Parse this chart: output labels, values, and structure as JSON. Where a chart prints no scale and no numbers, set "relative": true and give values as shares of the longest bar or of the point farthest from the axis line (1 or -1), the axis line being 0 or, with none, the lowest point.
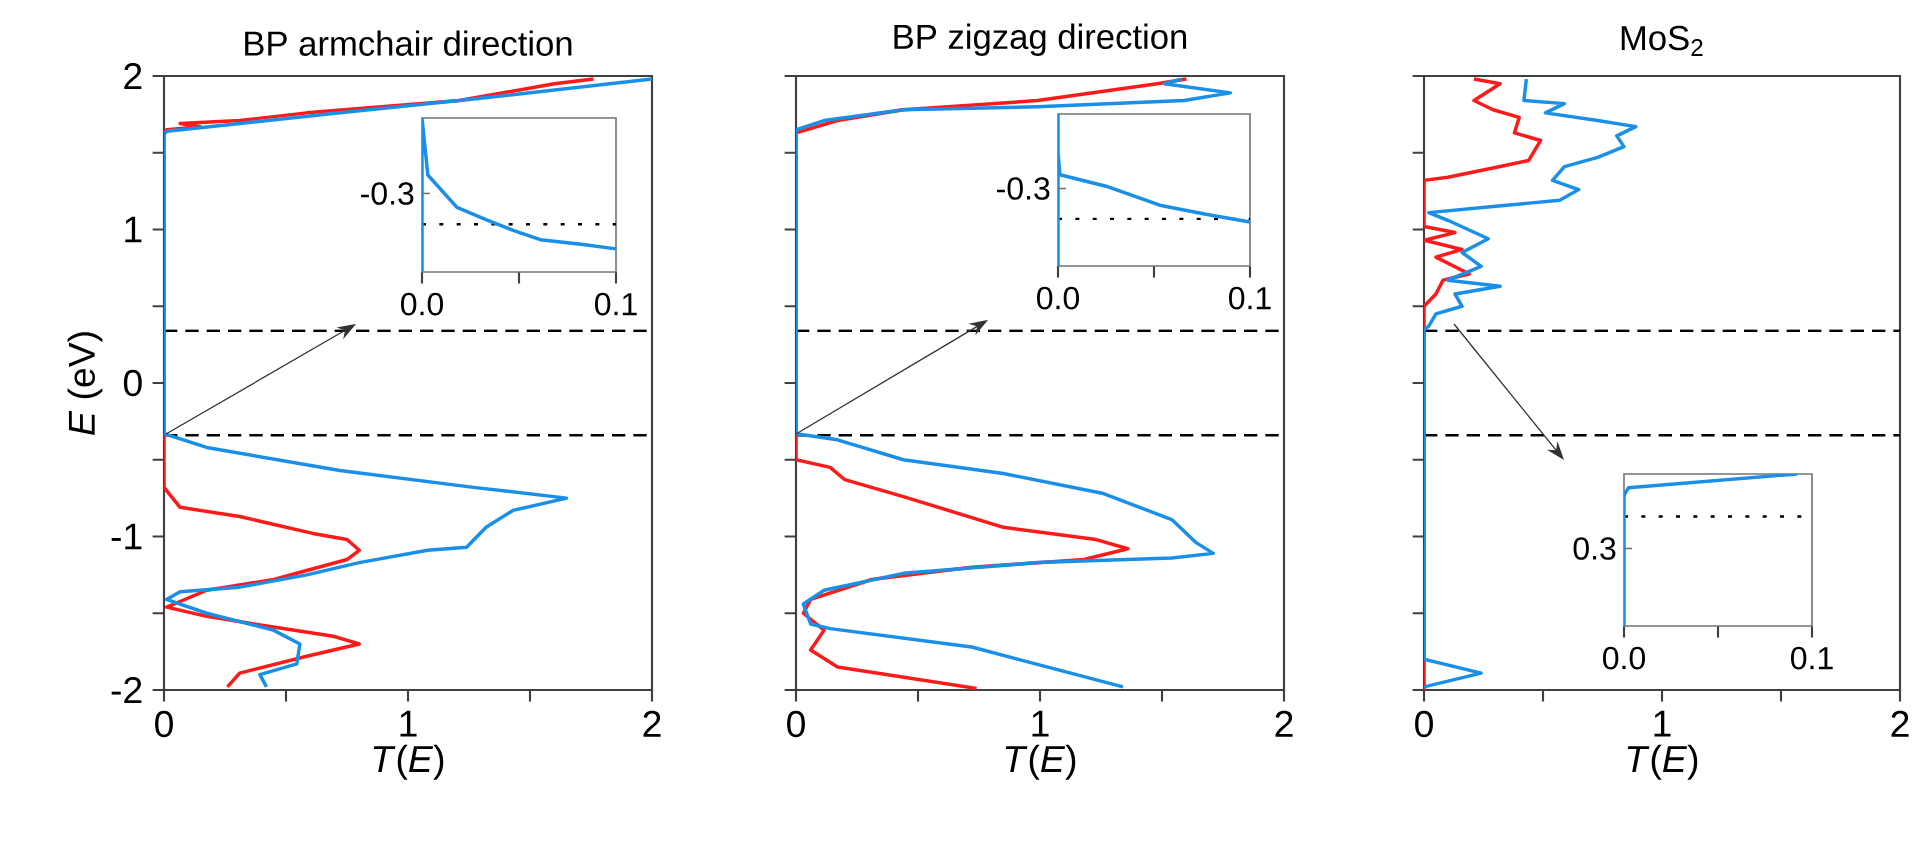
{
  "chart_data": [
    {
      "type": "line",
      "title": "BP armchair direction",
      "xlabel": "*T*(*E*)",
      "ylabel": "*E* (eV)",
      "xlim": [
        0,
        2
      ],
      "ylim": [
        -2,
        2
      ],
      "xticks": [
        0,
        {
          "value": 0.5,
          "label": null
        },
        1,
        {
          "value": 1.5,
          "label": null
        },
        2
      ],
      "yticks": [
        -2,
        {
          "value": -1.5,
          "label": null
        },
        -1,
        {
          "value": -0.5,
          "label": null
        },
        0,
        {
          "value": 0.5,
          "label": null
        },
        1,
        {
          "value": 1.5,
          "label": null
        },
        2
      ],
      "series": [
        {
          "color": "#ff1a1a",
          "x": [
            1.76,
            1.6,
            1.21,
            0.585,
            0.31,
            0.066,
            0.148,
            0.011,
            0,
            0,
            0.066,
            0.31,
            0.61,
            0.75,
            0.8,
            0.75,
            0.45,
            0.175,
            0.011,
            0.175,
            0.448,
            0.694,
            0.8,
            0.585,
            0.31,
            0.26
          ],
          "values": [
            1.98,
            1.95,
            1.84,
            1.76,
            1.71,
            1.69,
            1.67,
            1.65,
            1.64,
            -0.68,
            -0.81,
            -0.87,
            -0.98,
            -1.02,
            -1.09,
            -1.15,
            -1.28,
            -1.35,
            -1.46,
            -1.52,
            -1.59,
            -1.65,
            -1.7,
            -1.78,
            -1.89,
            -1.98
          ]
        },
        {
          "color": "#1a8fe8",
          "x": [
            2.0,
            1.268,
            0.721,
            0.311,
            0.011,
            0,
            0,
            0.175,
            0.721,
            1.268,
            1.65,
            1.43,
            1.32,
            1.24,
            1.08,
            0.8,
            0.585,
            0.31,
            0.066,
            0.01,
            0.175,
            0.448,
            0.557,
            0.544,
            0.393,
            0.42
          ],
          "values": [
            1.98,
            1.85,
            1.76,
            1.69,
            1.64,
            1.62,
            -0.33,
            -0.42,
            -0.57,
            -0.68,
            -0.75,
            -0.83,
            -0.94,
            -1.07,
            -1.09,
            -1.17,
            -1.25,
            -1.33,
            -1.36,
            -1.41,
            -1.5,
            -1.61,
            -1.7,
            -1.83,
            -1.9,
            -1.98
          ]
        }
      ],
      "ref_lines": [
        {
          "axis": "y",
          "value": 0.34,
          "color": "#000000",
          "line_style": "dashed"
        },
        {
          "axis": "y",
          "value": -0.34,
          "color": "#000000",
          "line_style": "dashed"
        }
      ]
    },
    {
      "type": "line",
      "xlim": [
        0,
        0.1
      ],
      "relative": true,
      "annotations": [
        "-0.3"
      ],
      "xticks": [
        {
          "value": 0,
          "label": "0.0"
        },
        {
          "value": 0.05,
          "label": null
        },
        0.1
      ],
      "series": [
        {
          "color": "#1a8fe8",
          "x": [
            0,
            0,
            0.003,
            0.018,
            0.033,
            0.047,
            0.061,
            0.082,
            0.1
          ],
          "values": [
            0,
            1,
            0.63,
            0.42,
            0.34,
            0.27,
            0.21,
            0.18,
            0.15
          ]
        }
      ],
      "ref_lines": [
        {
          "axis": "y",
          "value": 0.31,
          "color": "#000000",
          "line_style": "dotted"
        }
      ]
    },
    {
      "type": "line",
      "title": "BP zigzag direction",
      "xlabel": "*T*(*E*)",
      "xlim": [
        0,
        2
      ],
      "ylim": [
        -2,
        2
      ],
      "tick_labels": "x",
      "xticks": [
        0,
        {
          "value": 0.5,
          "label": null
        },
        1,
        {
          "value": 1.5,
          "label": null
        },
        2
      ],
      "yticks": [
        -2,
        {
          "value": -1.5,
          "label": null
        },
        -1,
        {
          "value": -0.5,
          "label": null
        },
        0,
        {
          "value": 0.5,
          "label": null
        },
        1,
        {
          "value": 1.5,
          "label": null
        },
        2
      ],
      "series": [
        {
          "color": "#ff1a1a",
          "x": [
            1.6,
            1.48,
            0.99,
            0.44,
            0.17,
            0,
            0,
            0.14,
            0.2,
            0.44,
            0.85,
            1.23,
            1.36,
            1.18,
            0.72,
            0.31,
            0.06,
            0.03,
            0.115,
            0.06,
            0.17,
            0.74
          ],
          "values": [
            1.98,
            1.95,
            1.84,
            1.78,
            1.71,
            1.63,
            -0.5,
            -0.55,
            -0.63,
            -0.74,
            -0.94,
            -1.02,
            -1.08,
            -1.15,
            -1.2,
            -1.28,
            -1.41,
            -1.5,
            -1.61,
            -1.74,
            -1.85,
            -1.99
          ]
        },
        {
          "color": "#1a8fe8",
          "x": [
            1.58,
            1.51,
            1.78,
            1.59,
            0.99,
            0.44,
            0.115,
            0,
            0,
            0.17,
            0.44,
            0.85,
            1.26,
            1.54,
            1.64,
            1.71,
            1.54,
            0.99,
            0.44,
            0.115,
            0.03,
            0.06,
            0.14,
            0.72,
            1.34
          ],
          "values": [
            1.98,
            1.95,
            1.89,
            1.84,
            1.8,
            1.78,
            1.71,
            1.65,
            -0.33,
            -0.37,
            -0.5,
            -0.59,
            -0.72,
            -0.89,
            -1.04,
            -1.11,
            -1.14,
            -1.17,
            -1.24,
            -1.35,
            -1.44,
            -1.57,
            -1.6,
            -1.72,
            -1.98
          ]
        }
      ],
      "ref_lines": [
        {
          "axis": "y",
          "value": 0.34,
          "color": "#000000",
          "line_style": "dashed"
        },
        {
          "axis": "y",
          "value": -0.34,
          "color": "#000000",
          "line_style": "dashed"
        }
      ]
    },
    {
      "type": "line",
      "xlim": [
        0,
        0.1
      ],
      "relative": true,
      "annotations": [
        "-0.3"
      ],
      "xticks": [
        {
          "value": 0,
          "label": "0.0"
        },
        {
          "value": 0.05,
          "label": null
        },
        0.1
      ],
      "series": [
        {
          "color": "#1a8fe8",
          "x": [
            0,
            0,
            0,
            0.001,
            0.025,
            0.053,
            0.077,
            0.1
          ],
          "values": [
            0,
            1,
            0.745,
            0.6,
            0.525,
            0.4,
            0.34,
            0.29
          ]
        }
      ],
      "ref_lines": [
        {
          "axis": "y",
          "value": 0.31,
          "color": "#000000",
          "line_style": "dotted"
        }
      ]
    },
    {
      "type": "line",
      "title": "MoS$_{2}$",
      "xlabel": "*T*(*E*)",
      "xlim": [
        0,
        2
      ],
      "ylim": [
        -2,
        2
      ],
      "tick_labels": "x",
      "xticks": [
        0,
        {
          "value": 0.5,
          "label": null
        },
        1,
        {
          "value": 1.5,
          "label": null
        },
        2
      ],
      "yticks": [
        -2,
        {
          "value": -1.5,
          "label": null
        },
        -1,
        {
          "value": -0.5,
          "label": null
        },
        0,
        {
          "value": 0.5,
          "label": null
        },
        1,
        {
          "value": 1.5,
          "label": null
        },
        2
      ],
      "series": [
        {
          "color": "#ff1a1a",
          "x": [
            0.21,
            0.32,
            0.21,
            0.29,
            0.4,
            0.38,
            0.49,
            0.44,
            0.32,
            0.1,
            0,
            0,
            0.13,
            0,
            0.16,
            0.05,
            0.19,
            0.08,
            0.05,
            0,
            0
          ],
          "values": [
            1.98,
            1.95,
            1.84,
            1.78,
            1.73,
            1.63,
            1.58,
            1.45,
            1.41,
            1.34,
            1.32,
            1.02,
            0.98,
            0.93,
            0.87,
            0.82,
            0.71,
            0.67,
            0.58,
            0.5,
            -2
          ]
        },
        {
          "color": "#1a8fe8",
          "x": [
            0.43,
            0.42,
            0.59,
            0.51,
            0.73,
            0.89,
            0.81,
            0.84,
            0.73,
            0.59,
            0.54,
            0.65,
            0.57,
            0.29,
            0.02,
            0.1,
            0.27,
            0.16,
            0.24,
            0.1,
            0.32,
            0.13,
            0.16,
            0.05,
            0.02,
            0,
            0,
            0.24,
            0
          ],
          "values": [
            1.98,
            1.84,
            1.82,
            1.76,
            1.71,
            1.67,
            1.61,
            1.54,
            1.47,
            1.41,
            1.32,
            1.26,
            1.19,
            1.15,
            1.11,
            1.06,
            0.94,
            0.85,
            0.76,
            0.67,
            0.63,
            0.58,
            0.5,
            0.45,
            0.37,
            0.35,
            -1.8,
            -1.89,
            -1.98
          ]
        }
      ],
      "ref_lines": [
        {
          "axis": "y",
          "value": 0.34,
          "color": "#000000",
          "line_style": "dashed"
        },
        {
          "axis": "y",
          "value": -0.34,
          "color": "#000000",
          "line_style": "dashed"
        }
      ]
    },
    {
      "type": "line",
      "xlim": [
        0,
        0.1
      ],
      "relative": true,
      "annotations": [
        "0.3"
      ],
      "xticks": [
        {
          "value": 0,
          "label": "0.0"
        },
        {
          "value": 0.05,
          "label": null
        },
        0.1
      ],
      "series": [
        {
          "color": "#1a8fe8",
          "x": [
            0,
            0,
            0.0024,
            0.092
          ],
          "values": [
            0,
            0.86,
            0.91,
            1
          ]
        }
      ],
      "ref_lines": [
        {
          "axis": "y",
          "value": 0.72,
          "color": "#000000",
          "line_style": "dotted"
        }
      ]
    }
  ]
}
